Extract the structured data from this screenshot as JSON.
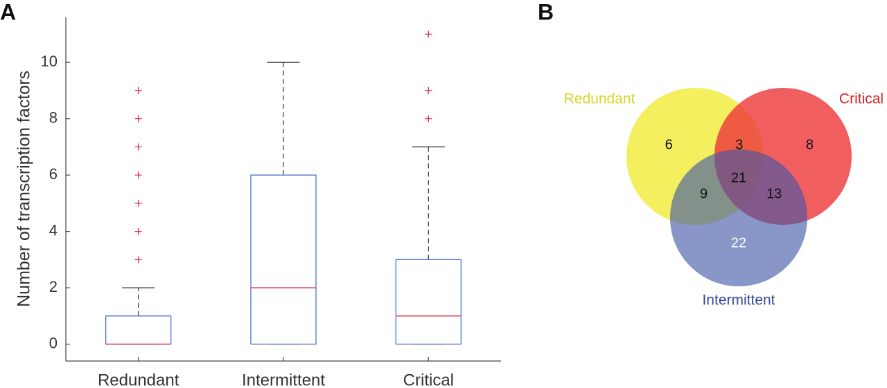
{
  "chart_data": [
    {
      "type": "box",
      "panel": "A",
      "ylabel": "Number of transcription factors",
      "categories": [
        "Redundant",
        "Intermittent",
        "Critical"
      ],
      "boxes": [
        {
          "min": 0,
          "q1": 0,
          "median": 0,
          "q3": 1,
          "max": 2,
          "outliers": [
            3,
            4,
            5,
            6,
            7,
            8,
            9
          ]
        },
        {
          "min": 0,
          "q1": 0,
          "median": 2,
          "q3": 6,
          "max": 10,
          "outliers": []
        },
        {
          "min": 0,
          "q1": 0,
          "median": 1,
          "q3": 3,
          "max": 7,
          "outliers": [
            8,
            9,
            11
          ]
        }
      ],
      "box_color": "#4a6fd0",
      "median_color": "#e0304a",
      "outlier_color": "#e0304a",
      "ylim": [
        -0.6,
        11.6
      ],
      "yticks": [
        0,
        2,
        4,
        6,
        8,
        10
      ]
    },
    {
      "type": "venn",
      "panel": "B",
      "sets": [
        {
          "name": "Redundant",
          "color": "#f0ec3a",
          "label_color": "#d9d52a"
        },
        {
          "name": "Critical",
          "color": "#ee3a3c",
          "label_color": "#d8232d"
        },
        {
          "name": "Intermittent",
          "color": "#3f55a6",
          "label_color": "#33489a"
        }
      ],
      "regions": [
        {
          "sets": [
            0
          ],
          "value": 6
        },
        {
          "sets": [
            0,
            1
          ],
          "value": 3
        },
        {
          "sets": [
            1
          ],
          "value": 8
        },
        {
          "sets": [
            0,
            1,
            2
          ],
          "value": 21
        },
        {
          "sets": [
            0,
            2
          ],
          "value": 9
        },
        {
          "sets": [
            1,
            2
          ],
          "value": 13
        },
        {
          "sets": [
            2
          ],
          "value": 22
        }
      ]
    }
  ]
}
